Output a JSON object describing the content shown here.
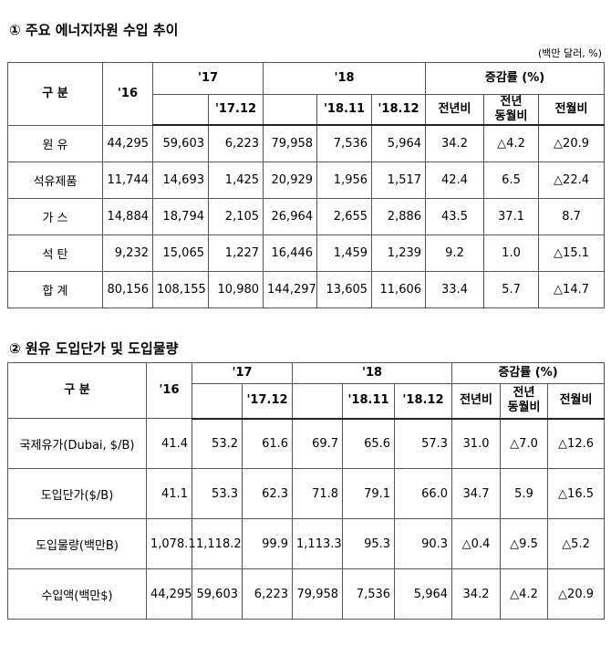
{
  "section1": {
    "title": "① 주요 에너지자원 수입 추이",
    "unit": "(백만 달러, %)",
    "header": {
      "category": "구 분",
      "y16": "'16",
      "y17": "'17",
      "m1712": "'17.12",
      "y18": "'18",
      "m1811": "'18.11",
      "m1812": "'18.12",
      "change": "증감률 (%)",
      "yoy": "전년비",
      "yoy_month": "전년\n동월비",
      "mom": "전월비"
    },
    "rows": [
      [
        "원 유",
        "44,295",
        "59,603",
        "6,223",
        "79,958",
        "7,536",
        "5,964",
        "34.2",
        "△4.2",
        "△20.9"
      ],
      [
        "석유제품",
        "11,744",
        "14,693",
        "1,425",
        "20,929",
        "1,956",
        "1,517",
        "42.4",
        "6.5",
        "△22.4"
      ],
      [
        "가 스",
        "14,884",
        "18,794",
        "2,105",
        "26,964",
        "2,655",
        "2,886",
        "43.5",
        "37.1",
        "8.7"
      ],
      [
        "석 탄",
        "9,232",
        "15,065",
        "1,227",
        "16,446",
        "1,459",
        "1,239",
        "9.2",
        "1.0",
        "△15.1"
      ],
      [
        "합 계",
        "80,156",
        "108,155",
        "10,980",
        "144,297",
        "13,605",
        "11,606",
        "33.4",
        "5.7",
        "△14.7"
      ]
    ]
  },
  "section2": {
    "title": "② 원유 도입단가 및 도입물량",
    "header": {
      "category": "구 분",
      "y16": "'16",
      "y17": "'17",
      "m1712": "'17.12",
      "y18": "'18",
      "m1811": "'18.11",
      "m1812": "'18.12",
      "change": "증감률 (%)",
      "yoy": "전년비",
      "yoy_month": "전년\n동월비",
      "mom": "전월비"
    },
    "rows": [
      [
        "국제유가(Dubai, $/B)",
        "41.4",
        "53.2",
        "61.6",
        "69.7",
        "65.6",
        "57.3",
        "31.0",
        "△7.0",
        "△12.6"
      ],
      [
        "도입단가($/B)",
        "41.1",
        "53.3",
        "62.3",
        "71.8",
        "79.1",
        "66.0",
        "34.7",
        "5.9",
        "△16.5"
      ],
      [
        "도입물량(백만B)",
        "1,078.1",
        "1,118.2",
        "99.9",
        "1,113.3",
        "95.3",
        "90.3",
        "△0.4",
        "△9.5",
        "△5.2"
      ],
      [
        "수입액(백만$)",
        "44,295",
        "59,603",
        "6,223",
        "79,958",
        "7,536",
        "5,964",
        "34.2",
        "△4.2",
        "△20.9"
      ]
    ]
  }
}
